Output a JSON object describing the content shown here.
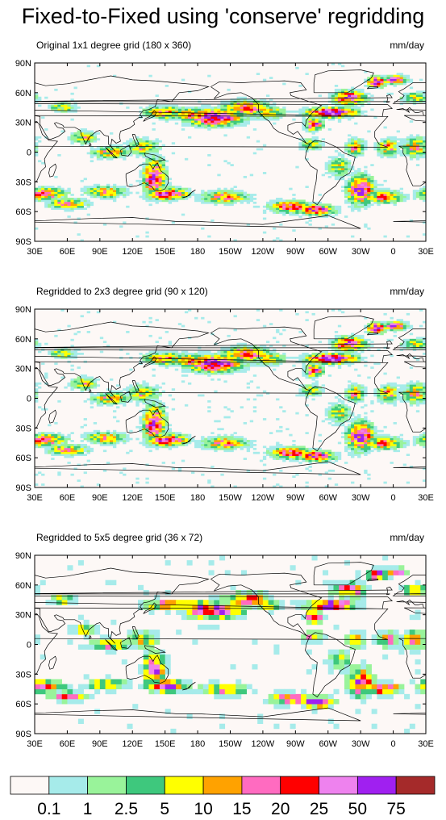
{
  "title": "Fixed-to-Fixed using 'conserve' regridding",
  "chart_data": [
    {
      "type": "heatmap",
      "title": "Original 1x1 degree grid (180 x 360)",
      "units": "mm/day",
      "grid_degrees": [
        1,
        1
      ],
      "grid_size": "180 x 360",
      "xticks": [
        "30E",
        "60E",
        "90E",
        "120E",
        "150E",
        "180",
        "150W",
        "120W",
        "90W",
        "60W",
        "30W",
        "0",
        "30E"
      ],
      "yticks": [
        "90N",
        "60N",
        "30N",
        "0",
        "30S",
        "60S",
        "90S"
      ],
      "xlim": [
        30,
        390
      ],
      "ylim": [
        -90,
        90
      ]
    },
    {
      "type": "heatmap",
      "title": "Regridded to 2x3 degree grid (90 x 120)",
      "units": "mm/day",
      "grid_degrees": [
        3,
        2
      ],
      "grid_size": "90 x 120",
      "xticks": [
        "30E",
        "60E",
        "90E",
        "120E",
        "150E",
        "180",
        "150W",
        "120W",
        "90W",
        "60W",
        "30W",
        "0",
        "30E"
      ],
      "yticks": [
        "90N",
        "60N",
        "30N",
        "0",
        "30S",
        "60S",
        "90S"
      ],
      "xlim": [
        30,
        390
      ],
      "ylim": [
        -90,
        90
      ]
    },
    {
      "type": "heatmap",
      "title": "Regridded to 5x5 degree grid (36 x 72)",
      "units": "mm/day",
      "grid_degrees": [
        5,
        5
      ],
      "grid_size": "36 x 72",
      "xticks": [
        "30E",
        "60E",
        "90E",
        "120E",
        "150E",
        "180",
        "150W",
        "120W",
        "90W",
        "60W",
        "30W",
        "0",
        "30E"
      ],
      "yticks": [
        "90N",
        "60N",
        "30N",
        "0",
        "30S",
        "60S",
        "90S"
      ],
      "xlim": [
        30,
        390
      ],
      "ylim": [
        -90,
        90
      ]
    }
  ],
  "colorbar": {
    "levels": [
      "0.1",
      "1",
      "2.5",
      "5",
      "10",
      "15",
      "20",
      "25",
      "50",
      "75"
    ],
    "colors": [
      "#fdf8f6",
      "#a6ebea",
      "#99f39a",
      "#3ec87d",
      "#ffff00",
      "#ffa200",
      "#ff6bc0",
      "#ff0000",
      "#ee82ee",
      "#a020f0",
      "#a52a2a"
    ]
  }
}
